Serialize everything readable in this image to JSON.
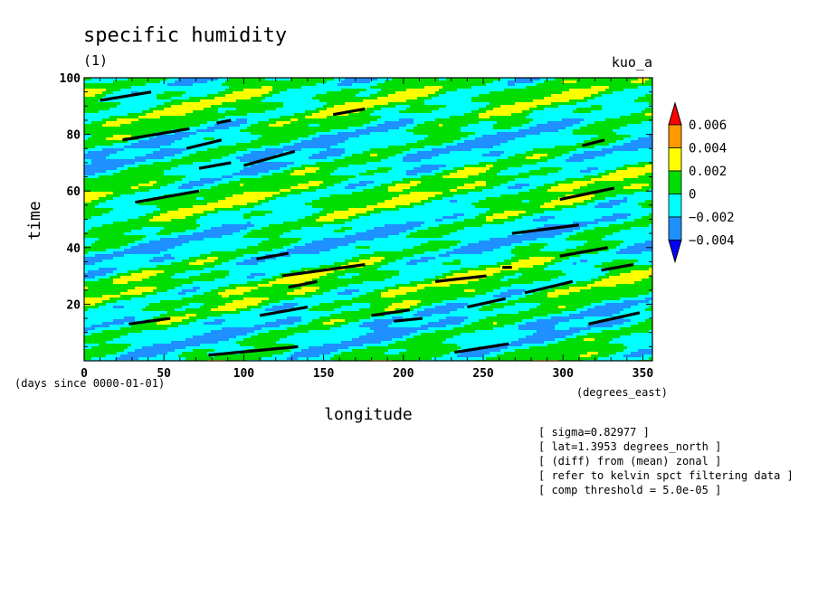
{
  "chart_data": {
    "type": "heatmap",
    "title": "specific humidity",
    "subtitle": "(1)",
    "corner_label": "kuo_a",
    "xlabel": "longitude",
    "ylabel": "time",
    "x_units": "(degrees_east)",
    "y_units": "(days since 0000-01-01)",
    "xlim": [
      0,
      356
    ],
    "ylim": [
      0,
      100
    ],
    "xticks": [
      0,
      50,
      100,
      150,
      200,
      250,
      300,
      350
    ],
    "xtick_labels": [
      "0",
      "50",
      "100",
      "150",
      "200",
      "250",
      "300",
      "350"
    ],
    "yticks": [
      20,
      40,
      60,
      80,
      100
    ],
    "ytick_labels": [
      "20",
      "40",
      "60",
      "80",
      "100"
    ],
    "colorbar": {
      "levels": [
        "0.006",
        "0.004",
        "0.002",
        "0",
        "−0.002",
        "−0.004"
      ],
      "colors": [
        "#ff0000",
        "#ff9900",
        "#ffff00",
        "#00dd00",
        "#00ffff",
        "#1e90ff",
        "#0000ff"
      ],
      "extend": "both"
    },
    "tracks": [
      {
        "x0": 10,
        "x1": 42,
        "y0": 92,
        "y1": 95
      },
      {
        "x0": 24,
        "x1": 66,
        "y0": 78,
        "y1": 82
      },
      {
        "x0": 64,
        "x1": 86,
        "y0": 75,
        "y1": 78
      },
      {
        "x0": 83,
        "x1": 92,
        "y0": 84,
        "y1": 85
      },
      {
        "x0": 72,
        "x1": 92,
        "y0": 68,
        "y1": 70
      },
      {
        "x0": 100,
        "x1": 132,
        "y0": 69,
        "y1": 74
      },
      {
        "x0": 32,
        "x1": 72,
        "y0": 56,
        "y1": 60
      },
      {
        "x0": 156,
        "x1": 176,
        "y0": 87,
        "y1": 89
      },
      {
        "x0": 312,
        "x1": 326,
        "y0": 76,
        "y1": 78
      },
      {
        "x0": 298,
        "x1": 332,
        "y0": 57,
        "y1": 61
      },
      {
        "x0": 268,
        "x1": 310,
        "y0": 45,
        "y1": 48
      },
      {
        "x0": 298,
        "x1": 328,
        "y0": 37,
        "y1": 40
      },
      {
        "x0": 324,
        "x1": 344,
        "y0": 32,
        "y1": 34
      },
      {
        "x0": 108,
        "x1": 128,
        "y0": 36,
        "y1": 38
      },
      {
        "x0": 124,
        "x1": 176,
        "y0": 30,
        "y1": 34
      },
      {
        "x0": 128,
        "x1": 146,
        "y0": 26,
        "y1": 28
      },
      {
        "x0": 220,
        "x1": 252,
        "y0": 28,
        "y1": 30
      },
      {
        "x0": 262,
        "x1": 268,
        "y0": 33,
        "y1": 33
      },
      {
        "x0": 276,
        "x1": 306,
        "y0": 24,
        "y1": 28
      },
      {
        "x0": 240,
        "x1": 264,
        "y0": 19,
        "y1": 22
      },
      {
        "x0": 316,
        "x1": 348,
        "y0": 13,
        "y1": 17
      },
      {
        "x0": 110,
        "x1": 140,
        "y0": 16,
        "y1": 19
      },
      {
        "x0": 180,
        "x1": 204,
        "y0": 16,
        "y1": 18
      },
      {
        "x0": 194,
        "x1": 212,
        "y0": 14,
        "y1": 15
      },
      {
        "x0": 28,
        "x1": 54,
        "y0": 13,
        "y1": 15
      },
      {
        "x0": 78,
        "x1": 134,
        "y0": 2,
        "y1": 5
      },
      {
        "x0": 232,
        "x1": 266,
        "y0": 3,
        "y1": 6
      }
    ]
  },
  "info_lines": [
    "[ sigma=0.82977 ]",
    "[ lat=1.3953 degrees_north ]",
    "[ (diff) from (mean) zonal ]",
    "[ refer to kelvin spct filtering data ]",
    "[ comp threshold = 5.0e-05 ]"
  ]
}
